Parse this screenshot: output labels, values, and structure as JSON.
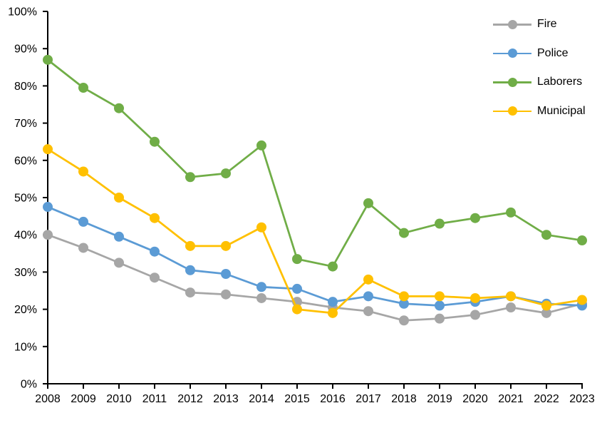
{
  "chart_data": {
    "type": "line",
    "title": "",
    "xlabel": "",
    "ylabel": "",
    "x": [
      "2008",
      "2009",
      "2010",
      "2011",
      "2012",
      "2013",
      "2014",
      "2015",
      "2016",
      "2017",
      "2018",
      "2019",
      "2020",
      "2021",
      "2022",
      "2023"
    ],
    "ylim": [
      0,
      100
    ],
    "ytick_step": 10,
    "y_tick_labels": [
      "0%",
      "10%",
      "20%",
      "30%",
      "40%",
      "50%",
      "60%",
      "70%",
      "80%",
      "90%",
      "100%"
    ],
    "grid": "off",
    "legend_position": "top-right",
    "marker": "circle",
    "series": [
      {
        "name": "Fire",
        "color": "#A6A6A6",
        "values": [
          40,
          36.5,
          32.5,
          28.5,
          24.5,
          24,
          23,
          22,
          20.5,
          19.5,
          17,
          17.5,
          18.5,
          20.5,
          19,
          21.5
        ]
      },
      {
        "name": "Police",
        "color": "#5B9BD5",
        "values": [
          47.5,
          43.5,
          39.5,
          35.5,
          30.5,
          29.5,
          26,
          25.5,
          22,
          23.5,
          21.5,
          21,
          22,
          23.5,
          21.5,
          21
        ]
      },
      {
        "name": "Laborers",
        "color": "#70AD47",
        "values": [
          87,
          79.5,
          74,
          65,
          55.5,
          56.5,
          64,
          33.5,
          31.5,
          48.5,
          40.5,
          43,
          44.5,
          46,
          40,
          38.5
        ]
      },
      {
        "name": "Municipal",
        "color": "#FFC000",
        "values": [
          63,
          57,
          50,
          44.5,
          37,
          37,
          42,
          20,
          19,
          28,
          23.5,
          23.5,
          23,
          23.5,
          21,
          22.5
        ]
      }
    ]
  },
  "colors": {
    "axis": "#000000",
    "text": "#000000",
    "background": "#FFFFFF"
  }
}
